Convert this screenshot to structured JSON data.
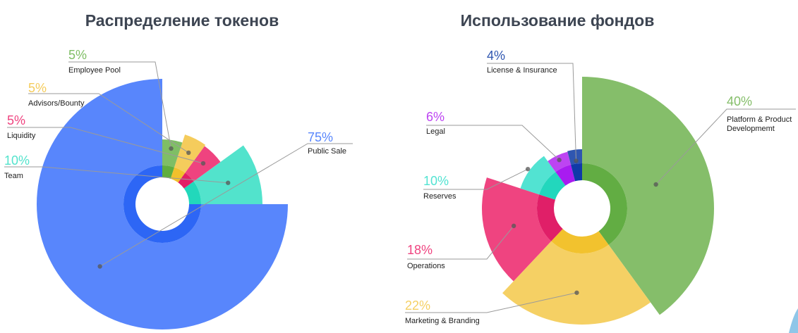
{
  "chart_data": [
    {
      "type": "pie",
      "title": "Распределение токенов",
      "slices": [
        {
          "label": "Public Sale",
          "value": 75,
          "display": "75%",
          "color": "#5886fc",
          "inner": "#2d66f5"
        },
        {
          "label": "Team",
          "value": 10,
          "display": "10%",
          "color": "#52e3cc",
          "inner": "#22d8bb"
        },
        {
          "label": "Liquidity",
          "value": 5,
          "display": "5%",
          "color": "#ef437f",
          "inner": "#e21f66"
        },
        {
          "label": "Advisors/Bounty",
          "value": 5,
          "display": "5%",
          "color": "#f5cc5c",
          "inner": "#f2c02c"
        },
        {
          "label": "Employee Pool",
          "value": 5,
          "display": "5%",
          "color": "#7fbe65",
          "inner": "#5fae3f"
        }
      ]
    },
    {
      "type": "pie",
      "title": "Использование фондов",
      "slices": [
        {
          "label": "Platform & Product Developmemt",
          "value": 40,
          "display": "40%",
          "color": "#85be6a",
          "inner": "#62ad43"
        },
        {
          "label": "Marketing & Branding",
          "value": 22,
          "display": "22%",
          "color": "#f5d064",
          "inner": "#f2c22e"
        },
        {
          "label": "Operations",
          "value": 18,
          "display": "18%",
          "color": "#ef4480",
          "inner": "#e01f68"
        },
        {
          "label": "Reserves",
          "value": 10,
          "display": "10%",
          "color": "#52e3d2",
          "inner": "#22d7bd"
        },
        {
          "label": "Legal",
          "value": 6,
          "display": "6%",
          "color": "#bd44f2",
          "inner": "#a81cf0"
        },
        {
          "label": "License & Insurance",
          "value": 4,
          "display": "4%",
          "color": "#2f56b0",
          "inner": "#0f3aa8"
        }
      ]
    }
  ]
}
